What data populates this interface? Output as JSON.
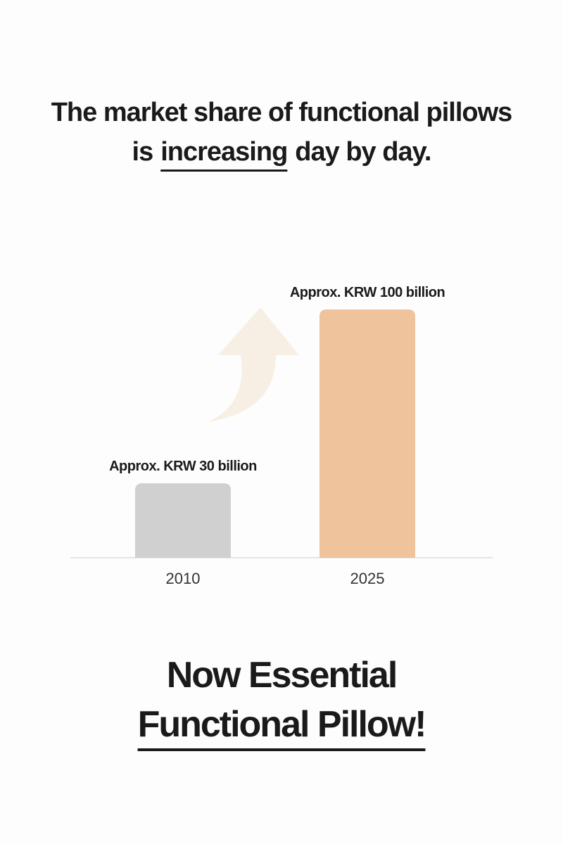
{
  "chart_data": {
    "type": "bar",
    "title_line1": "The market share of functional pillows",
    "title_line2": {
      "before": "is",
      "emphasis": "increasing",
      "after": "day by day."
    },
    "categories": [
      "2010",
      "2025"
    ],
    "values": [
      30,
      100
    ],
    "value_labels": [
      "Approx. KRW 30 billion",
      "Approx. KRW 100 billion"
    ],
    "colors": [
      "#d0d0d0",
      "#efc39b"
    ],
    "ylim": [
      0,
      100
    ],
    "footer_lines": [
      "Now Essential",
      "Functional Pillow!"
    ]
  }
}
